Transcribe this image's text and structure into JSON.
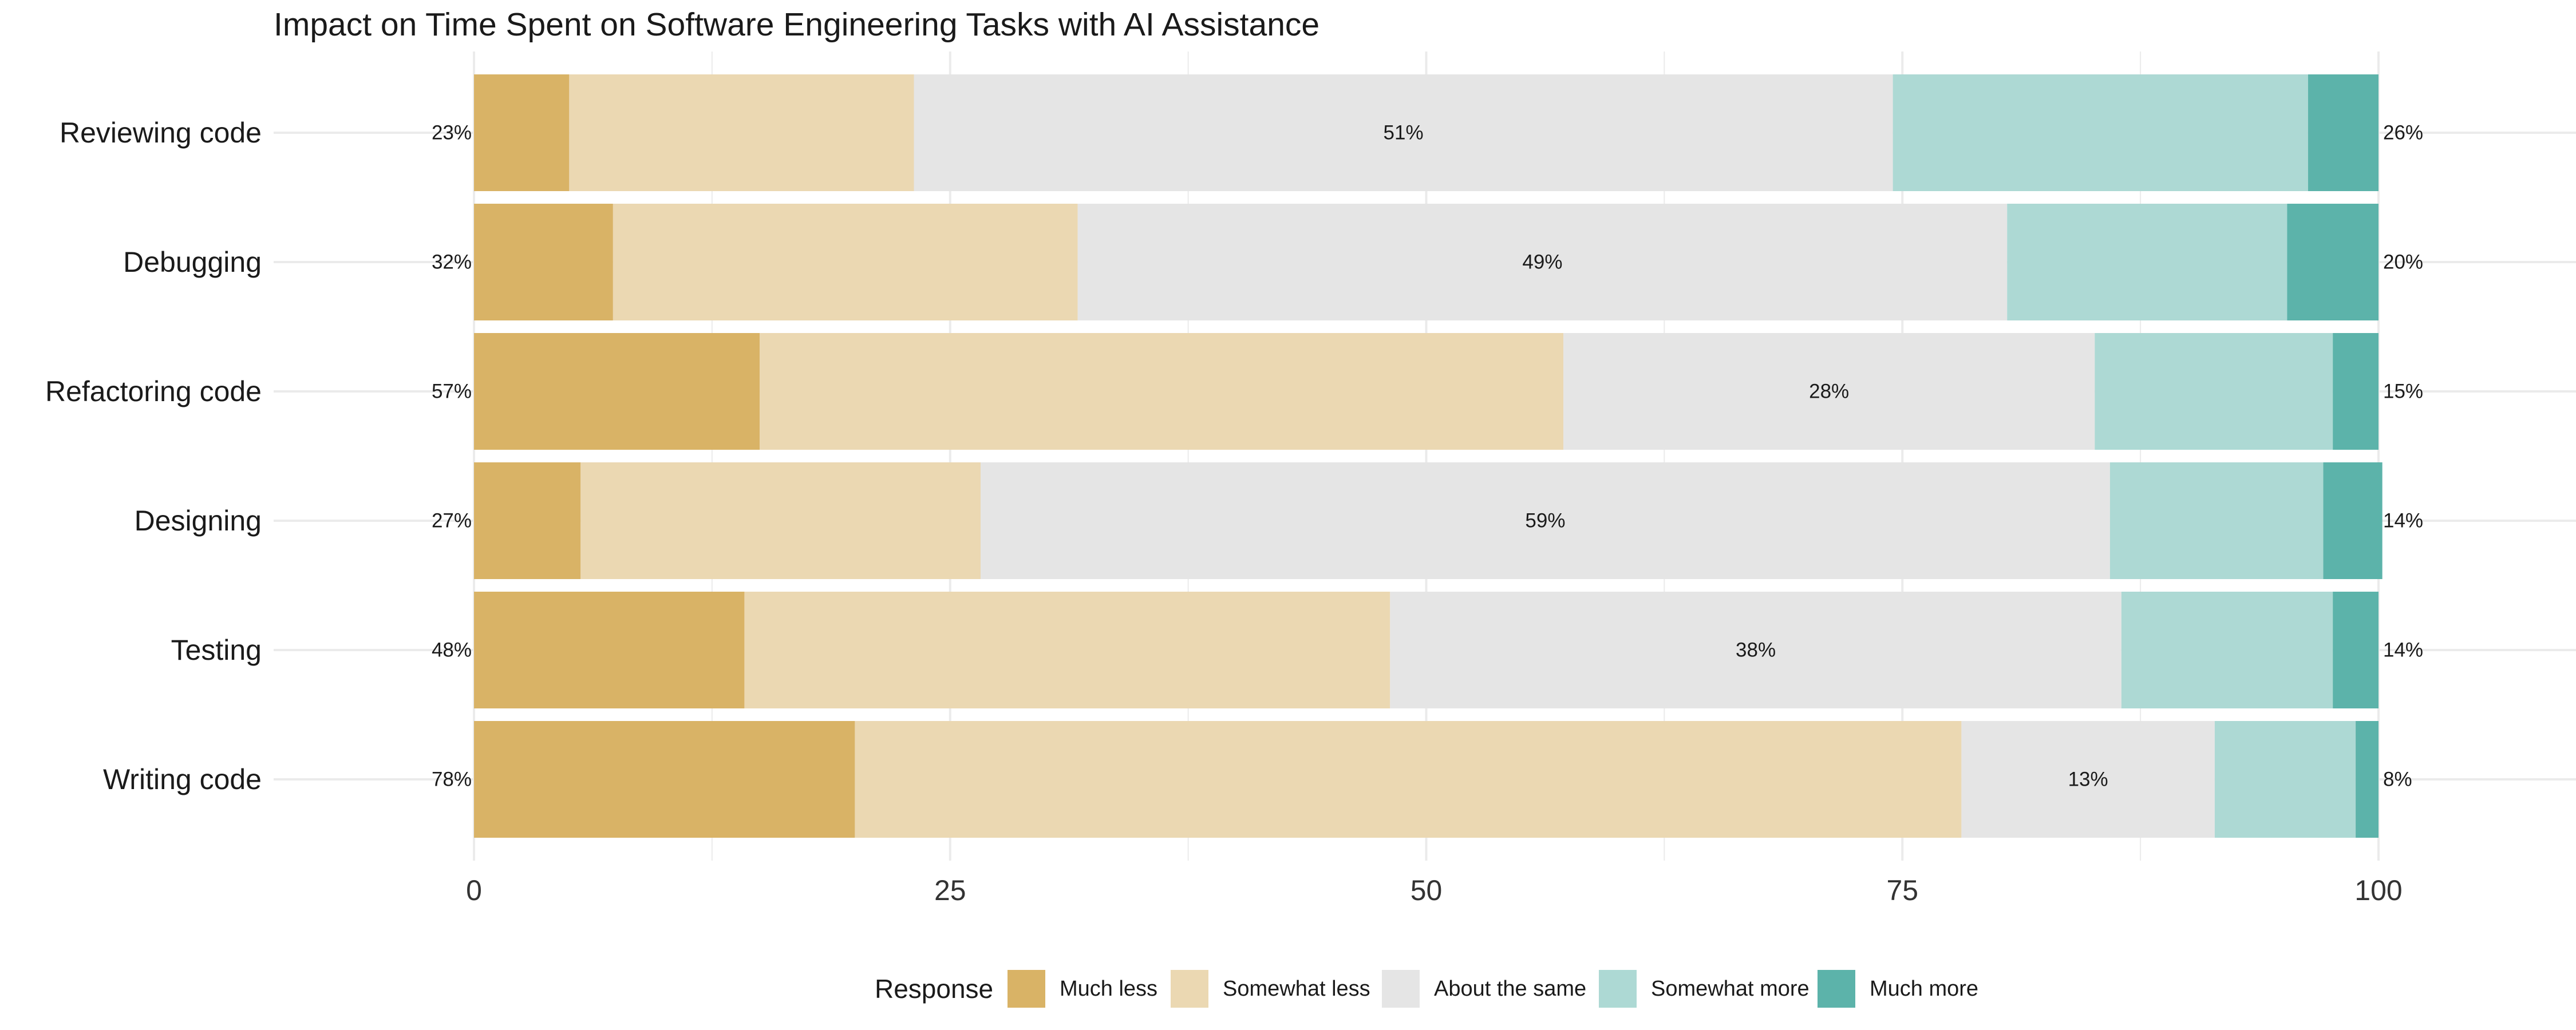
{
  "chart_data": {
    "type": "bar",
    "orientation": "horizontal",
    "stacked": true,
    "title": "Impact on Time Spent on Software Engineering Tasks with AI Assistance",
    "xlabel": "",
    "ylabel": "",
    "xlim": [
      0,
      100
    ],
    "x_ticks": [
      "0",
      "25",
      "50",
      "75",
      "100"
    ],
    "grid": true,
    "legend": {
      "title": "Response",
      "position": "bottom"
    },
    "categories": [
      "Reviewing code",
      "Debugging",
      "Refactoring code",
      "Designing",
      "Testing",
      "Writing code"
    ],
    "series": [
      {
        "name": "Much less",
        "color": "#D9B366",
        "values": [
          5,
          7.3,
          15,
          5.6,
          14.2,
          20
        ]
      },
      {
        "name": "Somewhat less",
        "color": "#EBD8B2",
        "values": [
          18.1,
          24.4,
          42.2,
          21,
          33.9,
          58.1
        ]
      },
      {
        "name": "About the same",
        "color": "#E5E5E5",
        "values": [
          51.4,
          48.8,
          27.9,
          59.3,
          38.4,
          13.3
        ]
      },
      {
        "name": "Somewhat more",
        "color": "#ADD9D4",
        "values": [
          21.8,
          14.7,
          12.5,
          11.2,
          11.1,
          7.4
        ]
      },
      {
        "name": "Much more",
        "color": "#5CB3AA",
        "values": [
          3.7,
          4.8,
          2.4,
          3.1,
          2.4,
          1.2
        ]
      }
    ],
    "labels": {
      "less": [
        "23%",
        "32%",
        "57%",
        "27%",
        "48%",
        "78%"
      ],
      "same": [
        "51%",
        "49%",
        "28%",
        "59%",
        "38%",
        "13%"
      ],
      "more": [
        "26%",
        "20%",
        "15%",
        "14%",
        "14%",
        "8%"
      ]
    }
  }
}
